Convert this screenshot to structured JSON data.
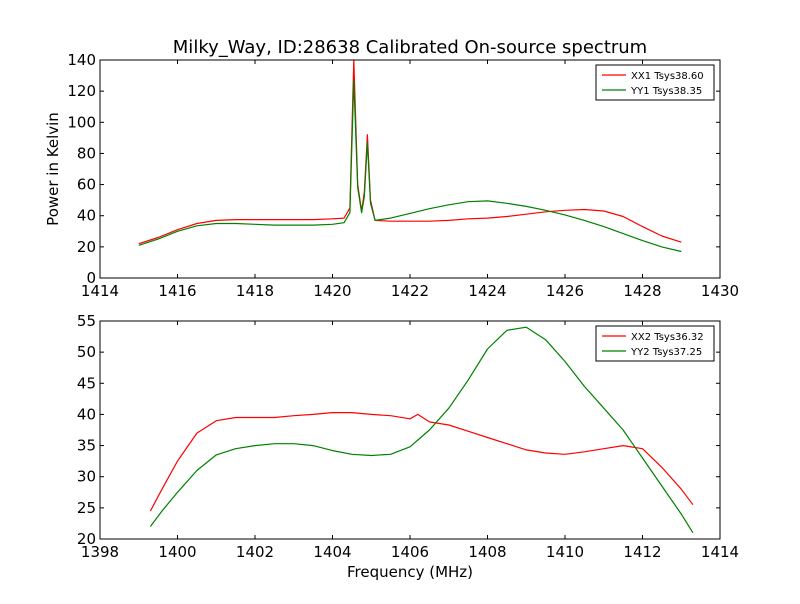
{
  "chart_data": [
    {
      "type": "line",
      "title": "Milky_Way, ID:28638 Calibrated On-source spectrum",
      "xlabel": "",
      "ylabel": "Power in Kelvin",
      "xlim": [
        1414,
        1430
      ],
      "ylim": [
        0,
        140
      ],
      "xticks": [
        1414,
        1416,
        1418,
        1420,
        1422,
        1424,
        1426,
        1428,
        1430
      ],
      "yticks": [
        0,
        20,
        40,
        60,
        80,
        100,
        120,
        140
      ],
      "legend_position": "top-right",
      "grid": false,
      "series": [
        {
          "name": "XX1 Tsys38.60",
          "color": "#ff0000",
          "x": [
            1415.0,
            1415.5,
            1416.0,
            1416.5,
            1417.0,
            1417.5,
            1418.0,
            1418.5,
            1419.0,
            1419.5,
            1420.0,
            1420.3,
            1420.45,
            1420.55,
            1420.65,
            1420.75,
            1420.82,
            1420.9,
            1420.98,
            1421.1,
            1421.5,
            1422.0,
            1422.5,
            1423.0,
            1423.5,
            1424.0,
            1424.5,
            1425.0,
            1425.5,
            1426.0,
            1426.5,
            1427.0,
            1427.5,
            1428.0,
            1428.5,
            1429.0
          ],
          "y": [
            22,
            26,
            31,
            35,
            37,
            37.5,
            37.5,
            37.5,
            37.5,
            37.5,
            38,
            38.5,
            45,
            140,
            60,
            43,
            55,
            92,
            50,
            37,
            36.5,
            36.5,
            36.5,
            37,
            38,
            38.5,
            39.5,
            41,
            42.5,
            43.5,
            44,
            43,
            39.5,
            33,
            27,
            23
          ]
        },
        {
          "name": "YY1 Tsys38.35",
          "color": "#008000",
          "x": [
            1415.0,
            1415.5,
            1416.0,
            1416.5,
            1417.0,
            1417.5,
            1418.0,
            1418.5,
            1419.0,
            1419.5,
            1420.0,
            1420.3,
            1420.45,
            1420.55,
            1420.65,
            1420.75,
            1420.82,
            1420.9,
            1420.98,
            1421.1,
            1421.5,
            1422.0,
            1422.5,
            1423.0,
            1423.5,
            1424.0,
            1424.5,
            1425.0,
            1425.5,
            1426.0,
            1426.5,
            1427.0,
            1427.5,
            1428.0,
            1428.5,
            1429.0
          ],
          "y": [
            21,
            25,
            30,
            33.5,
            35,
            35,
            34.5,
            34,
            34,
            34,
            34.5,
            35.5,
            42,
            127,
            58,
            42,
            52,
            87,
            48,
            37,
            38.5,
            41.5,
            44.5,
            47,
            49,
            49.5,
            48,
            46,
            43.5,
            40.5,
            37,
            33,
            28.5,
            24,
            20,
            17
          ]
        }
      ]
    },
    {
      "type": "line",
      "title": "",
      "xlabel": "Frequency (MHz)",
      "ylabel": "",
      "xlim": [
        1398,
        1414
      ],
      "ylim": [
        20,
        55
      ],
      "xticks": [
        1398,
        1400,
        1402,
        1404,
        1406,
        1408,
        1410,
        1412,
        1414
      ],
      "yticks": [
        20,
        25,
        30,
        35,
        40,
        45,
        50,
        55
      ],
      "legend_position": "top-right",
      "grid": false,
      "series": [
        {
          "name": "XX2 Tsys36.32",
          "color": "#ff0000",
          "x": [
            1399.3,
            1399.6,
            1400.0,
            1400.5,
            1401.0,
            1401.5,
            1402.0,
            1402.5,
            1403.0,
            1403.5,
            1404.0,
            1404.5,
            1405.0,
            1405.5,
            1406.0,
            1406.2,
            1406.5,
            1407.0,
            1407.5,
            1408.0,
            1408.5,
            1409.0,
            1409.5,
            1410.0,
            1410.5,
            1411.0,
            1411.5,
            1412.0,
            1412.5,
            1413.0,
            1413.3
          ],
          "y": [
            24.5,
            28,
            32.5,
            37,
            39,
            39.5,
            39.5,
            39.5,
            39.8,
            40,
            40.3,
            40.3,
            40,
            39.8,
            39.3,
            40,
            38.8,
            38.3,
            37.3,
            36.3,
            35.3,
            34.3,
            33.8,
            33.6,
            34,
            34.5,
            35,
            34.5,
            31.5,
            28,
            25.5
          ]
        },
        {
          "name": "YY2 Tsys37.25",
          "color": "#008000",
          "x": [
            1399.3,
            1399.6,
            1400.0,
            1400.5,
            1401.0,
            1401.5,
            1402.0,
            1402.5,
            1403.0,
            1403.5,
            1404.0,
            1404.5,
            1405.0,
            1405.5,
            1406.0,
            1406.5,
            1407.0,
            1407.5,
            1408.0,
            1408.5,
            1409.0,
            1409.5,
            1410.0,
            1410.5,
            1411.0,
            1411.5,
            1412.0,
            1412.5,
            1413.0,
            1413.3
          ],
          "y": [
            22,
            24.5,
            27.5,
            31,
            33.5,
            34.5,
            35,
            35.3,
            35.3,
            35,
            34.2,
            33.6,
            33.4,
            33.6,
            34.8,
            37.5,
            41,
            45.5,
            50.5,
            53.5,
            54,
            52,
            48.5,
            44.5,
            41,
            37.5,
            33,
            28.5,
            24,
            21
          ]
        }
      ]
    }
  ]
}
